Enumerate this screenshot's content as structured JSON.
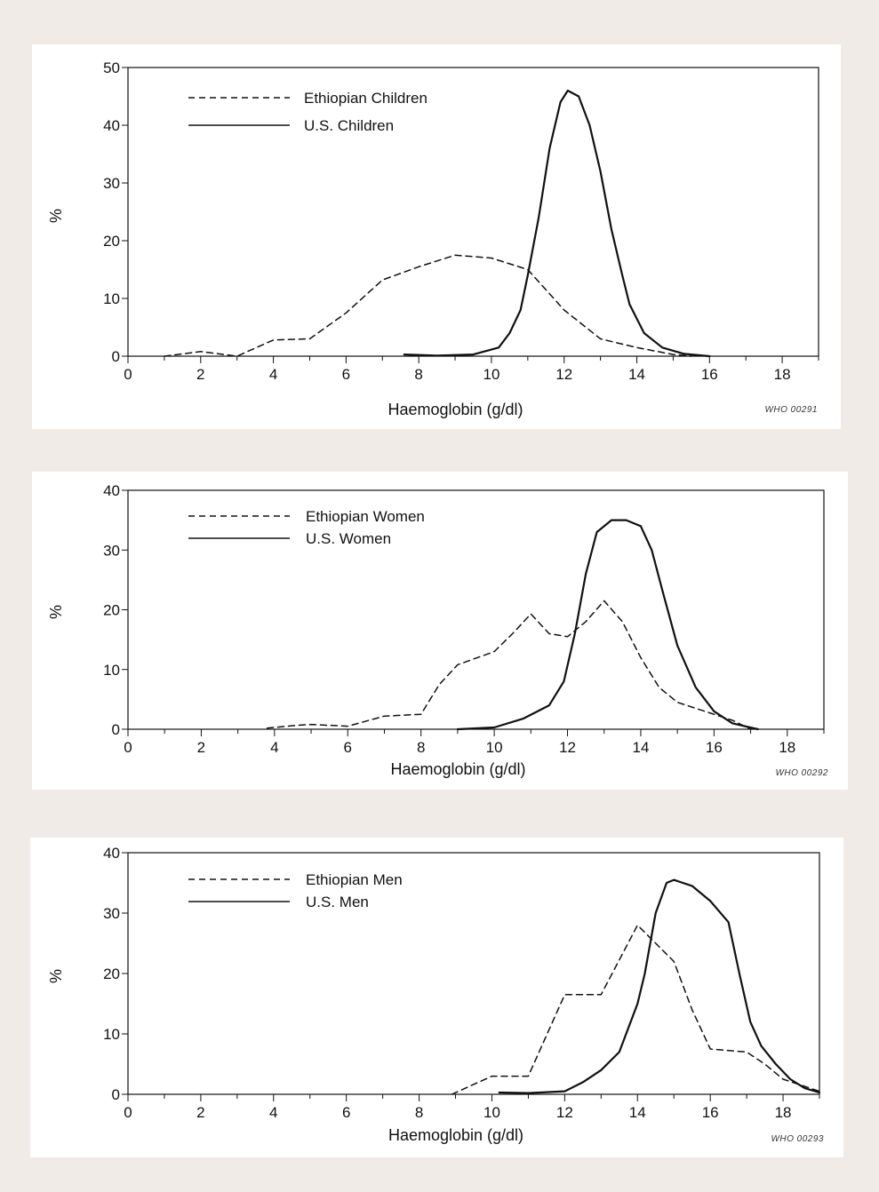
{
  "chart_data": [
    {
      "type": "line",
      "title": "",
      "xlabel": "Haemoglobin (g/dl)",
      "ylabel": "%",
      "xlim": [
        0,
        19
      ],
      "ylim": [
        0,
        50
      ],
      "x_ticks": [
        0,
        2,
        4,
        6,
        8,
        10,
        12,
        14,
        16,
        18
      ],
      "y_ticks": [
        0,
        10,
        20,
        30,
        40,
        50
      ],
      "legend_position": "top-left",
      "grid": false,
      "code": "WHO 00291",
      "series": [
        {
          "name": "Ethiopian Children",
          "style": "dashed",
          "points": [
            [
              1,
              0
            ],
            [
              2,
              0.8
            ],
            [
              3,
              0
            ],
            [
              4,
              2.8
            ],
            [
              5,
              3
            ],
            [
              6,
              7.5
            ],
            [
              7,
              13.2
            ],
            [
              8,
              15.5
            ],
            [
              9,
              17.5
            ],
            [
              10,
              17
            ],
            [
              11,
              15
            ],
            [
              12,
              8
            ],
            [
              13,
              3
            ],
            [
              14,
              1.5
            ],
            [
              15,
              0.3
            ],
            [
              15.5,
              0
            ]
          ]
        },
        {
          "name": "U.S. Children",
          "style": "solid",
          "points": [
            [
              7.6,
              0.3
            ],
            [
              8.5,
              0.1
            ],
            [
              9.5,
              0.3
            ],
            [
              10.2,
              1.5
            ],
            [
              10.5,
              4
            ],
            [
              10.8,
              8
            ],
            [
              11,
              14
            ],
            [
              11.3,
              24
            ],
            [
              11.6,
              36
            ],
            [
              11.9,
              44
            ],
            [
              12.1,
              46
            ],
            [
              12.4,
              45
            ],
            [
              12.7,
              40
            ],
            [
              13,
              32
            ],
            [
              13.3,
              22
            ],
            [
              13.6,
              14
            ],
            [
              13.8,
              9
            ],
            [
              14.2,
              4
            ],
            [
              14.7,
              1.5
            ],
            [
              15.3,
              0.4
            ],
            [
              16,
              0
            ]
          ]
        }
      ]
    },
    {
      "type": "line",
      "title": "",
      "xlabel": "Haemoglobin (g/dl)",
      "ylabel": "%",
      "xlim": [
        0,
        19
      ],
      "ylim": [
        0,
        40
      ],
      "x_ticks": [
        0,
        2,
        4,
        6,
        8,
        10,
        12,
        14,
        16,
        18
      ],
      "y_ticks": [
        0,
        10,
        20,
        30,
        40
      ],
      "legend_position": "top-left",
      "grid": false,
      "code": "WHO 00292",
      "series": [
        {
          "name": "Ethiopian Women",
          "style": "dashed",
          "points": [
            [
              3.8,
              0.2
            ],
            [
              4.5,
              0.6
            ],
            [
              5,
              0.8
            ],
            [
              6,
              0.5
            ],
            [
              7,
              2.2
            ],
            [
              8,
              2.5
            ],
            [
              8.5,
              7.5
            ],
            [
              9,
              10.8
            ],
            [
              10,
              13
            ],
            [
              10.5,
              16
            ],
            [
              11,
              19.3
            ],
            [
              11.5,
              16
            ],
            [
              12,
              15.5
            ],
            [
              12.5,
              18
            ],
            [
              13,
              21.5
            ],
            [
              13.5,
              18
            ],
            [
              14,
              12
            ],
            [
              14.5,
              7
            ],
            [
              15,
              4.5
            ],
            [
              16,
              2.5
            ],
            [
              16.5,
              1.5
            ],
            [
              17,
              0
            ]
          ]
        },
        {
          "name": "U.S. Women",
          "style": "solid",
          "points": [
            [
              9,
              0
            ],
            [
              10,
              0.3
            ],
            [
              10.8,
              1.8
            ],
            [
              11.5,
              4
            ],
            [
              11.9,
              8
            ],
            [
              12.2,
              16
            ],
            [
              12.5,
              26
            ],
            [
              12.8,
              33
            ],
            [
              13.2,
              35
            ],
            [
              13.6,
              35
            ],
            [
              14,
              34
            ],
            [
              14.3,
              30
            ],
            [
              14.6,
              23
            ],
            [
              15,
              14
            ],
            [
              15.5,
              7
            ],
            [
              16,
              3
            ],
            [
              16.5,
              1
            ],
            [
              17.2,
              0
            ]
          ]
        }
      ]
    },
    {
      "type": "line",
      "title": "",
      "xlabel": "Haemoglobin (g/dl)",
      "ylabel": "%",
      "xlim": [
        0,
        19
      ],
      "ylim": [
        0,
        40
      ],
      "x_ticks": [
        0,
        2,
        4,
        6,
        8,
        10,
        12,
        14,
        16,
        18
      ],
      "y_ticks": [
        0,
        10,
        20,
        30,
        40
      ],
      "legend_position": "top-left",
      "grid": false,
      "code": "WHO 00293",
      "series": [
        {
          "name": "Ethiopian Men",
          "style": "dashed",
          "points": [
            [
              8.9,
              0
            ],
            [
              10,
              3
            ],
            [
              11,
              3
            ],
            [
              12,
              16.5
            ],
            [
              13,
              16.5
            ],
            [
              14,
              28
            ],
            [
              15,
              22
            ],
            [
              15.5,
              14
            ],
            [
              16,
              7.5
            ],
            [
              17,
              7
            ],
            [
              17.5,
              5
            ],
            [
              18,
              2.5
            ],
            [
              19,
              0.5
            ]
          ]
        },
        {
          "name": "U.S. Men",
          "style": "solid",
          "points": [
            [
              10.2,
              0.3
            ],
            [
              11,
              0.2
            ],
            [
              12,
              0.5
            ],
            [
              12.5,
              2
            ],
            [
              13,
              4
            ],
            [
              13.5,
              7
            ],
            [
              14,
              15
            ],
            [
              14.2,
              20
            ],
            [
              14.5,
              30
            ],
            [
              14.8,
              35
            ],
            [
              15,
              35.5
            ],
            [
              15.5,
              34.5
            ],
            [
              16,
              32
            ],
            [
              16.5,
              28.5
            ],
            [
              16.8,
              20
            ],
            [
              17.1,
              12
            ],
            [
              17.4,
              8
            ],
            [
              17.8,
              5
            ],
            [
              18.2,
              2.5
            ],
            [
              18.6,
              1
            ],
            [
              19,
              0.3
            ]
          ]
        }
      ]
    }
  ]
}
